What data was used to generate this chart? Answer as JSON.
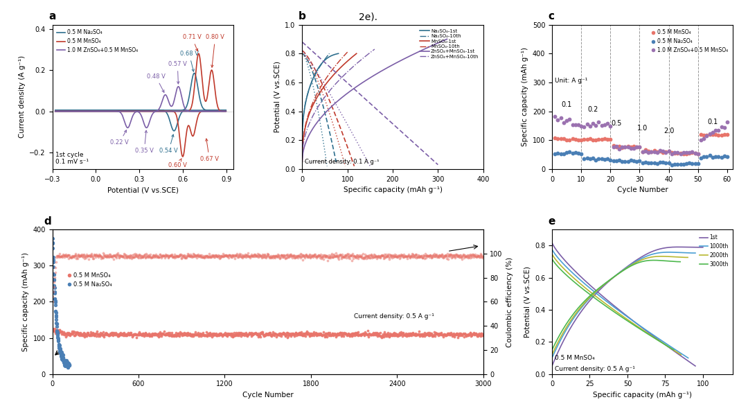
{
  "title_text": "2e).",
  "panel_a": {
    "xlabel": "Potential (V vs.SCE)",
    "ylabel": "Current density (A g⁻¹)",
    "xlim": [
      -0.3,
      0.95
    ],
    "ylim": [
      -0.28,
      0.42
    ],
    "xticks": [
      -0.3,
      0.0,
      0.3,
      0.6,
      0.9
    ],
    "yticks": [
      -0.2,
      0.0,
      0.2,
      0.4
    ],
    "legend": [
      "0.5 M Na₂SO₄",
      "0.5 M MnSO₄",
      "1.0 M ZnSO₄+0.5 M MnSO₄"
    ],
    "colors": [
      "#2e6f8e",
      "#c0392b",
      "#7b5ea7"
    ],
    "annotation": "1st cycle\n0.1 mV s⁻¹"
  },
  "panel_b": {
    "xlabel": "Specific capacity (mAh g⁻¹)",
    "ylabel": "Potential (V vs.SCE)",
    "xlim": [
      0,
      400
    ],
    "ylim": [
      0,
      1.0
    ],
    "xticks": [
      0,
      100,
      200,
      300,
      400
    ],
    "yticks": [
      0.0,
      0.2,
      0.4,
      0.6,
      0.8,
      1.0
    ],
    "annotation": "Current density: 0.1 A g⁻¹",
    "legend": [
      "Na₂SO₄-1st",
      "Na₂SO₄-10th",
      "MnSO₄-1st",
      "MnSO₄-10th",
      "ZnSO₄+MnSO₄-1st",
      "ZnSO₄+MnSO₄-10th"
    ],
    "colors_solid": [
      "#2e6f8e",
      "#c0392b",
      "#7b5ea7"
    ]
  },
  "panel_c": {
    "xlabel": "Cycle Number",
    "ylabel": "Specific capacity (mAh g⁻¹)",
    "xlim": [
      0,
      62
    ],
    "ylim": [
      0,
      500
    ],
    "xticks": [
      0,
      10,
      20,
      30,
      40,
      50,
      60
    ],
    "yticks": [
      0,
      100,
      200,
      300,
      400,
      500
    ],
    "legend": [
      "0.5 M MnSO₄",
      "0.5 M Na₂SO₄",
      "1.0 M ZnSO₄+0.5 M MnSO₄"
    ],
    "colors": [
      "#e8746a",
      "#4a7fb5",
      "#9b72b0"
    ],
    "rate_labels": [
      "0.1",
      "0.2",
      "0.5",
      "1.0",
      "2.0",
      "0.1"
    ],
    "rate_positions": [
      5,
      14,
      22,
      31,
      40,
      55
    ],
    "vlines": [
      10,
      20,
      30,
      40,
      50
    ],
    "unit_label": "Unit: A g⁻¹"
  },
  "panel_d": {
    "xlabel": "Cycle Number",
    "ylabel_left": "Specific capacity (mAh g⁻¹)",
    "ylabel_right": "Coulombic efficiency (%)",
    "xlim": [
      0,
      3000
    ],
    "ylim_left": [
      0,
      400
    ],
    "ylim_right": [
      0,
      120
    ],
    "xticks": [
      0,
      600,
      1200,
      1800,
      2400,
      3000
    ],
    "yticks_left": [
      0,
      100,
      200,
      300,
      400
    ],
    "yticks_right": [
      0,
      20,
      40,
      60,
      80,
      100
    ],
    "legend": [
      "0.5 M MnSO₄",
      "0.5 M Na₂SO₄"
    ],
    "colors": [
      "#e8746a",
      "#4a7fb5"
    ],
    "annotation": "Current density: 0.5 A g⁻¹"
  },
  "panel_e": {
    "xlabel": "Specific capacity (mAh g⁻¹)",
    "ylabel": "Potential (V vs.SCE)",
    "xlim": [
      0,
      120
    ],
    "ylim": [
      0.0,
      0.9
    ],
    "xticks": [
      0,
      25,
      50,
      75,
      100
    ],
    "yticks": [
      0.0,
      0.2,
      0.4,
      0.6,
      0.8
    ],
    "legend": [
      "1st",
      "1000th",
      "2000th",
      "3000th"
    ],
    "colors": [
      "#7b5ea7",
      "#4a9fd4",
      "#b8b830",
      "#4db84d"
    ],
    "annotations": [
      "0.5 M MnSO₄",
      "Current density: 0.5 A g⁻¹"
    ]
  }
}
